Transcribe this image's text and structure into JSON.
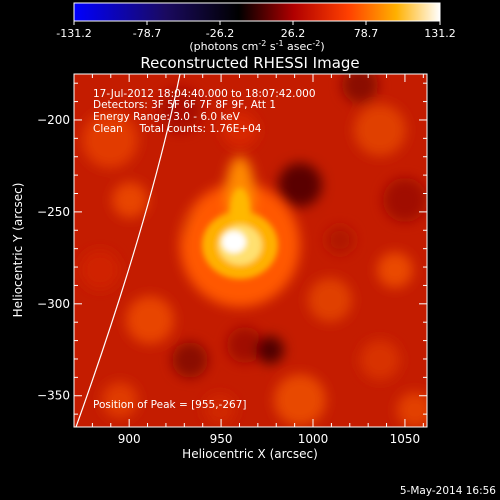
{
  "colorbar": {
    "ticks": [
      "-131.2",
      "-78.7",
      "-26.2",
      "26.2",
      "78.7",
      "131.2"
    ],
    "units_main": "(photons cm",
    "units_exp1": "-2",
    "units_mid": " s",
    "units_exp2": "-1",
    "units_end": " asec",
    "units_exp3": "-2",
    "units_close": ")"
  },
  "title": "Reconstructed RHESSI Image",
  "info": {
    "line1": "17-Jul-2012 18:04:40.000 to 18:07:42.000",
    "line2": "Detectors: 3F 5F 6F 7F 8F 9F, Att 1",
    "line3": "Energy Range: 3.0 - 6.0 keV",
    "line4": "Clean     Total counts: 1.76E+04"
  },
  "peak_text": "Position of Peak = [955,-267]",
  "axes": {
    "xlabel": "Heliocentric X (arcsec)",
    "ylabel": "Heliocentric Y (arcsec)",
    "xticks": [
      {
        "value": 900,
        "label": "900"
      },
      {
        "value": 950,
        "label": "950"
      },
      {
        "value": 1000,
        "label": "1000"
      },
      {
        "value": 1050,
        "label": "1050"
      }
    ],
    "yticks": [
      {
        "value": -200,
        "label": "−200"
      },
      {
        "value": -250,
        "label": "−250"
      },
      {
        "value": -300,
        "label": "−300"
      },
      {
        "value": -350,
        "label": "−350"
      }
    ],
    "xlim": [
      870,
      1062
    ],
    "ylim": [
      -367,
      -175
    ]
  },
  "timestamp": "5-May-2014 16:56"
}
